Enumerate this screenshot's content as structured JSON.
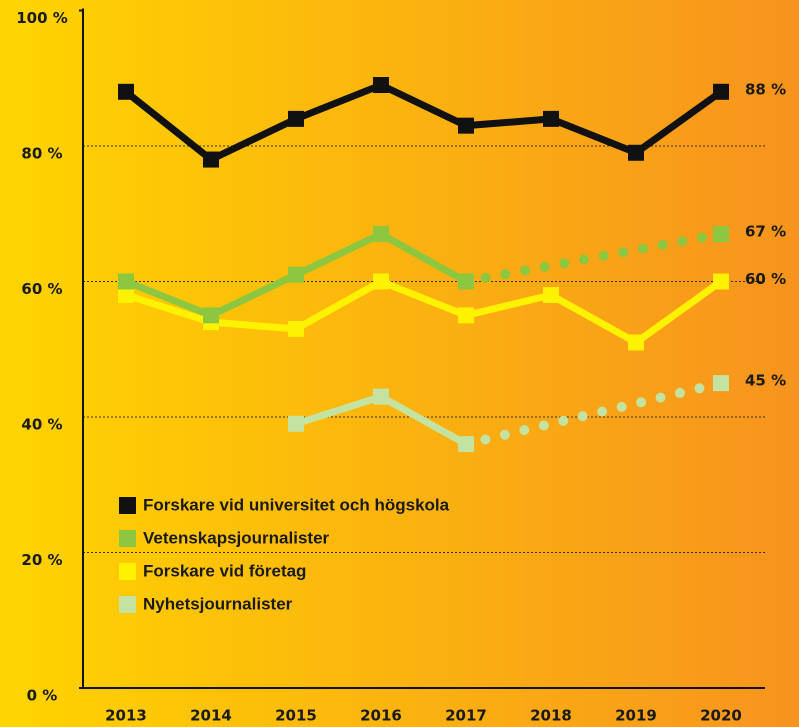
{
  "chart_data": {
    "type": "line",
    "categories": [
      "2013",
      "2014",
      "2015",
      "2016",
      "2017",
      "2018",
      "2019",
      "2020"
    ],
    "series": [
      {
        "name": "Forskare vid universitet och högskola",
        "color": "#111111",
        "values": [
          88,
          78,
          84,
          89,
          83,
          84,
          79,
          88
        ],
        "value_labels": [
          null,
          null,
          null,
          null,
          null,
          null,
          null,
          "88 %"
        ]
      },
      {
        "name": "Vetenskapsjournalister",
        "color": "#8dc63f",
        "values": [
          60,
          55,
          61,
          67,
          60,
          null,
          null,
          67
        ],
        "value_labels": [
          null,
          null,
          null,
          null,
          null,
          null,
          null,
          "67 %"
        ]
      },
      {
        "name": "Forskare vid företag",
        "color": "#fff200",
        "values": [
          58,
          54,
          53,
          60,
          55,
          58,
          51,
          60
        ],
        "value_labels": [
          null,
          null,
          null,
          null,
          null,
          null,
          null,
          "60 %"
        ]
      },
      {
        "name": "Nyhetsjournalister",
        "color": "#c5e3a0",
        "values": [
          null,
          null,
          39,
          43,
          36,
          null,
          null,
          45
        ],
        "value_labels": [
          null,
          null,
          null,
          null,
          null,
          null,
          null,
          "45 %"
        ]
      }
    ],
    "ylim": [
      0,
      100
    ],
    "yticks": [
      {
        "value": 0,
        "label": "0 %"
      },
      {
        "value": 20,
        "label": "20 %"
      },
      {
        "value": 40,
        "label": "40 %"
      },
      {
        "value": 60,
        "label": "60 %"
      },
      {
        "value": 80,
        "label": "80 %"
      },
      {
        "value": 100,
        "label": "100 %"
      }
    ],
    "grid": true,
    "gap_style": "dotted",
    "legend": "lower left"
  }
}
